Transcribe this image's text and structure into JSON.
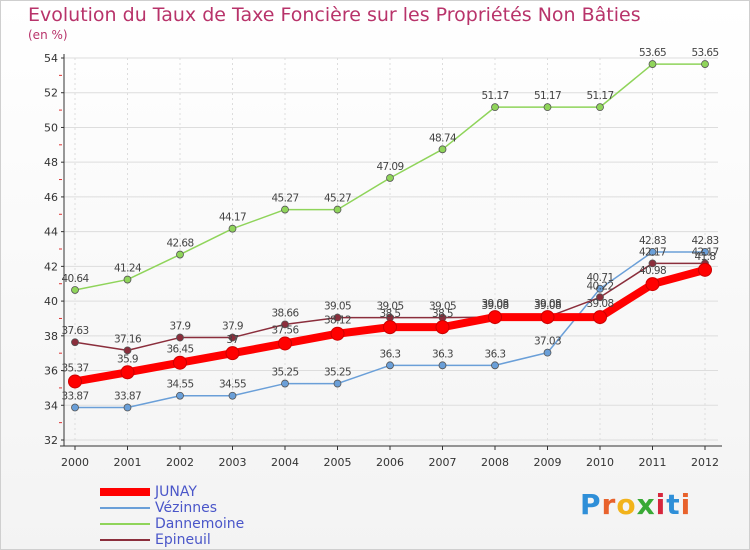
{
  "title": "Evolution du Taux de Taxe Foncière sur les Propriétés Non Bâties",
  "subtitle": "(en %)",
  "logo": "Proxiti",
  "logo_colors": [
    "#2f8fd8",
    "#e8622c",
    "#f2b31b",
    "#39a935",
    "#d7263d",
    "#2f8fd8",
    "#e8622c"
  ],
  "chart_data": {
    "type": "line",
    "title": "Evolution du Taux de Taxe Foncière sur les Propriétés Non Bâties",
    "ylabel": "(en %)",
    "xlabel": "",
    "x": [
      "2000",
      "2001",
      "2002",
      "2003",
      "2004",
      "2005",
      "2006",
      "2007",
      "2008",
      "2009",
      "2010",
      "2011",
      "2012"
    ],
    "ylim": [
      32,
      54
    ],
    "yticks": [
      "32",
      "34",
      "36",
      "38",
      "40",
      "42",
      "44",
      "46",
      "48",
      "50",
      "52",
      "54"
    ],
    "grid": true,
    "legend": "bottom-left",
    "series": [
      {
        "name": "JUNAY",
        "color": "#ff0000",
        "values": [
          35.37,
          35.9,
          36.45,
          37,
          37.56,
          38.12,
          38.5,
          38.5,
          39.08,
          39.08,
          39.08,
          40.98,
          41.8
        ],
        "labels": [
          "35.37",
          "35.9",
          "36.45",
          "37",
          "37.56",
          "38.12",
          "38.5",
          "38.5",
          "39.08",
          "39.08",
          "39.08",
          "40.98",
          "41.8"
        ]
      },
      {
        "name": "Vézinnes",
        "color": "#6a9fd8",
        "values": [
          33.87,
          33.87,
          34.55,
          34.55,
          35.25,
          35.25,
          36.3,
          36.3,
          36.3,
          37.03,
          40.71,
          42.83,
          42.83
        ],
        "labels": [
          "33.87",
          "33.87",
          "34.55",
          "34.55",
          "35.25",
          "35.25",
          "36.3",
          "36.3",
          "36.3",
          "37.03",
          "40.71",
          "42.83",
          "42.83"
        ]
      },
      {
        "name": "Dannemoine",
        "color": "#8fd45a",
        "values": [
          40.64,
          41.24,
          42.68,
          44.17,
          45.27,
          45.27,
          47.09,
          48.74,
          51.17,
          51.17,
          51.17,
          53.65,
          53.65
        ],
        "labels": [
          "40.64",
          "41.24",
          "42.68",
          "44.17",
          "45.27",
          "45.27",
          "47.09",
          "48.74",
          "51.17",
          "51.17",
          "51.17",
          "53.65",
          "53.65"
        ]
      },
      {
        "name": "Epineuil",
        "color": "#8b2e3c",
        "values": [
          37.63,
          37.16,
          37.9,
          37.9,
          38.66,
          39.05,
          39.05,
          39.05,
          39.08,
          39.08,
          40.22,
          42.17,
          42.17
        ],
        "labels": [
          "37.63",
          "37.16",
          "37.9",
          "37.9",
          "38.66",
          "39.05",
          "39.05",
          "39.05",
          "39.08",
          "39.08",
          "40.22",
          "42.17",
          "42.17"
        ]
      }
    ]
  }
}
